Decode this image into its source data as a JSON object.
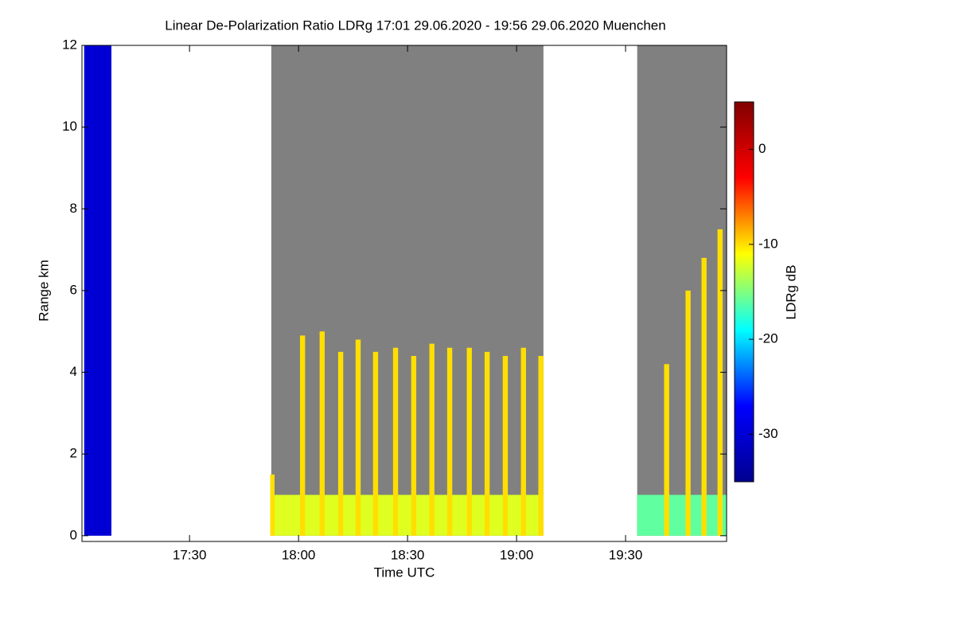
{
  "chart_data": {
    "type": "heatmap",
    "title": "Linear De-Polarization Ratio LDRg   17:01 29.06.2020 - 19:56 29.06.2020 Muenchen",
    "x_label": "Time UTC",
    "y_label": "Range km",
    "colorbar_label": "LDRg dB",
    "xlim": [
      1020.4,
      1197.8
    ],
    "xticks": [
      {
        "value": 1050,
        "label": "17:30"
      },
      {
        "value": 1080,
        "label": "18:00"
      },
      {
        "value": 1110,
        "label": "18:30"
      },
      {
        "value": 1140,
        "label": "19:00"
      },
      {
        "value": 1170,
        "label": "19:30"
      }
    ],
    "ylim": [
      -0.14,
      12
    ],
    "yticks": [
      0,
      2,
      4,
      6,
      8,
      10,
      12
    ],
    "clim": [
      -35,
      5
    ],
    "cticks": [
      0,
      -10,
      -20,
      -30
    ],
    "colormap": [
      "#00008f",
      "#0000ff",
      "#00ffff",
      "#ffff00",
      "#ff0000",
      "#800000"
    ],
    "no_signal_color": "#808080",
    "cells": [
      {
        "x": [
          1021,
          1028.5
        ],
        "y": [
          0,
          12
        ],
        "value": -30
      },
      {
        "x": [
          1072.5,
          1147.4
        ],
        "y": [
          0,
          12
        ],
        "value": null
      },
      {
        "x": [
          1173.2,
          1197.8
        ],
        "y": [
          0,
          12
        ],
        "value": null
      },
      {
        "x": [
          1072.5,
          1147.4
        ],
        "y": [
          0,
          1
        ],
        "value": -12
      },
      {
        "x": [
          1173.2,
          1197.8
        ],
        "y": [
          0,
          1
        ],
        "value": -16
      },
      {
        "x": [
          1072.2,
          1073.4
        ],
        "y": [
          0,
          1.5
        ],
        "value": -10
      },
      {
        "x": [
          1080.4,
          1081.8
        ],
        "y": [
          0,
          4.9
        ],
        "value": -10
      },
      {
        "x": [
          1085.8,
          1087.2
        ],
        "y": [
          0,
          5
        ],
        "value": -10
      },
      {
        "x": [
          1090.9,
          1092.3
        ],
        "y": [
          0,
          4.5
        ],
        "value": -10
      },
      {
        "x": [
          1095.7,
          1097.1
        ],
        "y": [
          0,
          4.8
        ],
        "value": -10
      },
      {
        "x": [
          1100.5,
          1101.9
        ],
        "y": [
          0,
          4.5
        ],
        "value": -10
      },
      {
        "x": [
          1106,
          1107.4
        ],
        "y": [
          0,
          4.6
        ],
        "value": -10
      },
      {
        "x": [
          1111,
          1112.4
        ],
        "y": [
          0,
          4.4
        ],
        "value": -10
      },
      {
        "x": [
          1116,
          1117.4
        ],
        "y": [
          0,
          4.7
        ],
        "value": -10
      },
      {
        "x": [
          1120.9,
          1122.3
        ],
        "y": [
          0,
          4.6
        ],
        "value": -10
      },
      {
        "x": [
          1126.3,
          1127.7
        ],
        "y": [
          0,
          4.6
        ],
        "value": -10
      },
      {
        "x": [
          1131.2,
          1132.6
        ],
        "y": [
          0,
          4.5
        ],
        "value": -10
      },
      {
        "x": [
          1136.2,
          1137.6
        ],
        "y": [
          0,
          4.4
        ],
        "value": -10
      },
      {
        "x": [
          1141.2,
          1142.6
        ],
        "y": [
          0,
          4.6
        ],
        "value": -10
      },
      {
        "x": [
          1146,
          1147.4
        ],
        "y": [
          0,
          4.4
        ],
        "value": -10
      },
      {
        "x": [
          1180.6,
          1182
        ],
        "y": [
          0,
          4.2
        ],
        "value": -10
      },
      {
        "x": [
          1186.5,
          1187.9
        ],
        "y": [
          0,
          6
        ],
        "value": -10
      },
      {
        "x": [
          1190.9,
          1192.3
        ],
        "y": [
          0,
          6.8
        ],
        "value": -10
      },
      {
        "x": [
          1195.3,
          1196.7
        ],
        "y": [
          0,
          7.5
        ],
        "value": -10
      }
    ]
  }
}
